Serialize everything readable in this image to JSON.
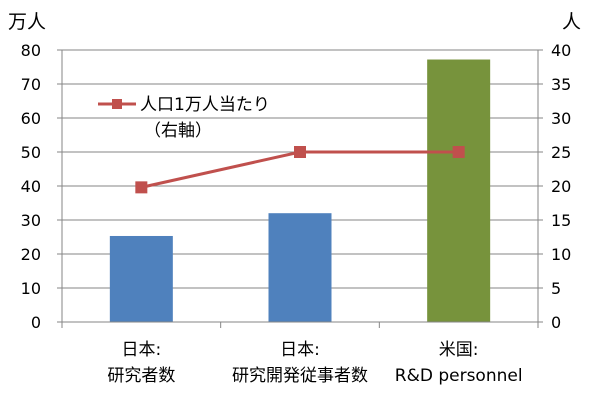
{
  "chart_data": {
    "type": "bar",
    "left_axis_unit": "万人",
    "right_axis_unit": "人",
    "categories": [
      [
        "日本:",
        "研究者数"
      ],
      [
        "日本:",
        "研究開発従事者数"
      ],
      [
        "米国:",
        "R&D personnel"
      ]
    ],
    "bar_series": {
      "values": [
        25.3,
        32,
        77.2
      ],
      "colors": [
        "#4f81bd",
        "#4f81bd",
        "#77933c"
      ],
      "axis": "left"
    },
    "line_series": {
      "name": "人口1万人当たり",
      "name_note": "（右軸）",
      "values": [
        19.8,
        25,
        25
      ],
      "color": "#c0504d",
      "axis": "right",
      "marker": "square"
    },
    "left_axis": {
      "min": 0,
      "max": 80,
      "step": 10
    },
    "right_axis": {
      "min": 0,
      "max": 40,
      "step": 5
    },
    "grid": true,
    "legend_position": "top-left"
  }
}
